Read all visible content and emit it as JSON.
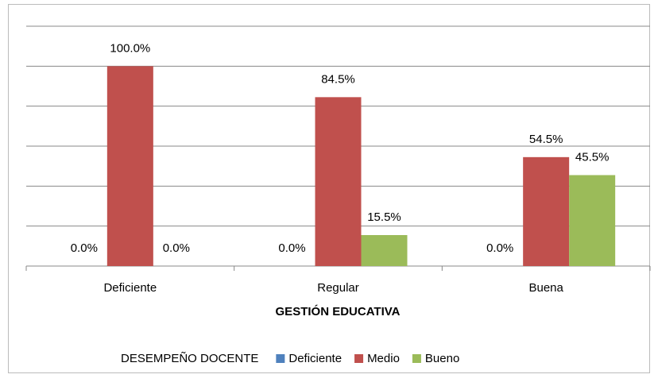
{
  "chart_data": {
    "type": "bar",
    "x_label": "GESTIÓN EDUCATIVA",
    "legend_title": "DESEMPEÑO DOCENTE",
    "categories": [
      "Deficiente",
      "Regular",
      "Buena"
    ],
    "series": [
      {
        "name": "Deficiente",
        "color": "#4f81bd",
        "values": [
          0,
          0,
          0
        ],
        "value_labels": [
          "0.0%",
          "0.0%",
          "0.0%"
        ]
      },
      {
        "name": "Medio",
        "color": "#c0504d",
        "values": [
          100,
          84.5,
          54.5
        ],
        "value_labels": [
          "100.0%",
          "84.5%",
          "54.5%"
        ]
      },
      {
        "name": "Bueno",
        "color": "#9bbb59",
        "values": [
          0,
          15.5,
          45.5
        ],
        "value_labels": [
          "0.0%",
          "15.5%",
          "45.5%"
        ]
      }
    ],
    "ylim": [
      0,
      120
    ],
    "yticks": [
      0,
      20,
      40,
      60,
      80,
      100,
      120
    ],
    "grid": true,
    "legend": "bottom"
  }
}
